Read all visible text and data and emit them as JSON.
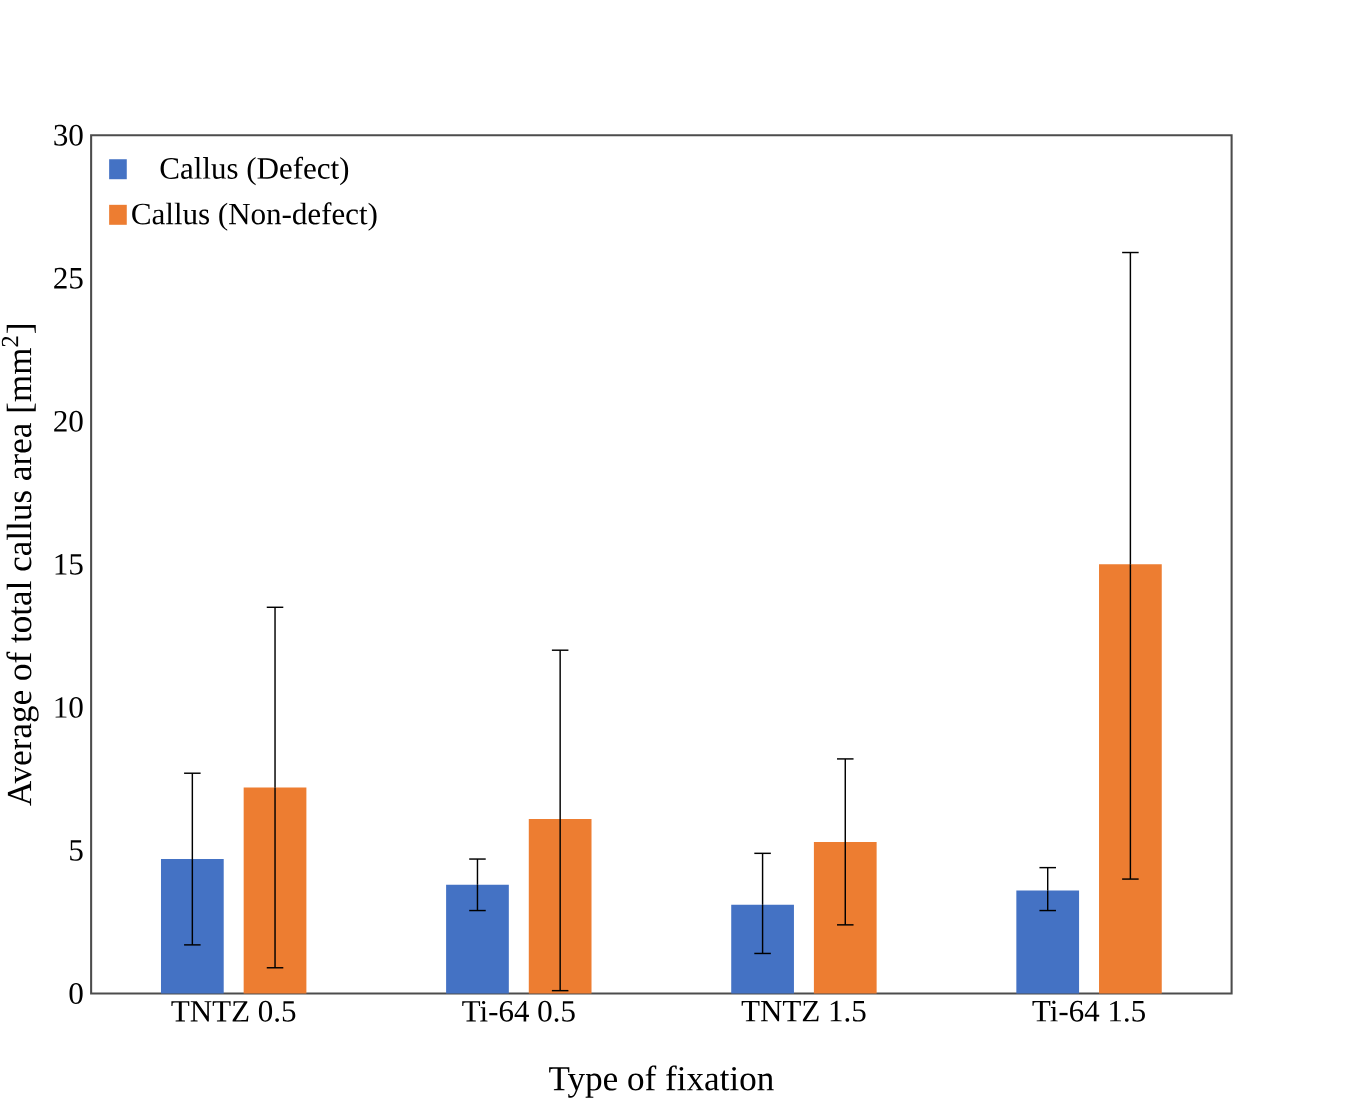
{
  "chart_data": {
    "type": "bar",
    "xlabel": "Type of fixation",
    "ylabel": "Average of total callus area [mm$^{2}$]",
    "categories": [
      "TNTZ 0.5",
      "Ti-64 0.5",
      "TNTZ 1.5",
      "Ti-64 1.5"
    ],
    "series": [
      {
        "name": "Callus (Defect)",
        "color": "#4472c4",
        "values": [
          4.7,
          3.8,
          3.1,
          3.6
        ],
        "errors": [
          [
            1.7,
            7.7
          ],
          [
            2.9,
            4.7
          ],
          [
            1.4,
            4.9
          ],
          [
            2.9,
            4.4
          ]
        ]
      },
      {
        "name": "Callus (Non-defect)",
        "color": "#ed7d31",
        "values": [
          7.2,
          6.1,
          5.3,
          15.0
        ],
        "errors": [
          [
            0.9,
            13.5
          ],
          [
            0.1,
            12.0
          ],
          [
            2.4,
            8.2
          ],
          [
            4.0,
            25.9
          ]
        ]
      }
    ],
    "ylim": [
      0,
      30
    ],
    "yticks": [
      0,
      5,
      10,
      15,
      20,
      25,
      30
    ],
    "grid": false,
    "legend": "top left"
  }
}
